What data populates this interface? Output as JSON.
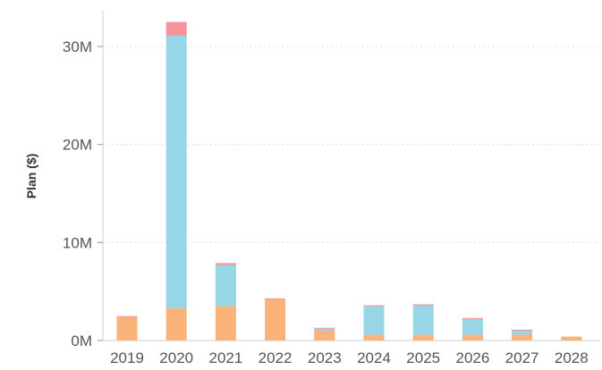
{
  "chart_data": {
    "type": "bar",
    "stacked": true,
    "categories": [
      "2019",
      "2020",
      "2021",
      "2022",
      "2023",
      "2024",
      "2025",
      "2026",
      "2027",
      "2028"
    ],
    "series": [
      {
        "color": "#f8b27a",
        "values": [
          2.4,
          3.3,
          3.5,
          4.2,
          1.0,
          0.6,
          0.6,
          0.6,
          0.6,
          0.4
        ]
      },
      {
        "color": "#96d6e6",
        "values": [
          0.0,
          27.8,
          4.2,
          0.0,
          0.2,
          2.9,
          3.0,
          1.6,
          0.4,
          0.0
        ]
      },
      {
        "color": "#f7949a",
        "values": [
          0.1,
          1.4,
          0.2,
          0.1,
          0.1,
          0.1,
          0.1,
          0.1,
          0.1,
          0.0
        ]
      }
    ],
    "ylabel": "Plan ($)",
    "yticks": [
      0,
      10,
      20,
      30
    ],
    "ytick_labels": [
      "0M",
      "10M",
      "20M",
      "30M"
    ],
    "ylim": [
      0,
      33
    ],
    "grid": true,
    "legend": "none"
  }
}
